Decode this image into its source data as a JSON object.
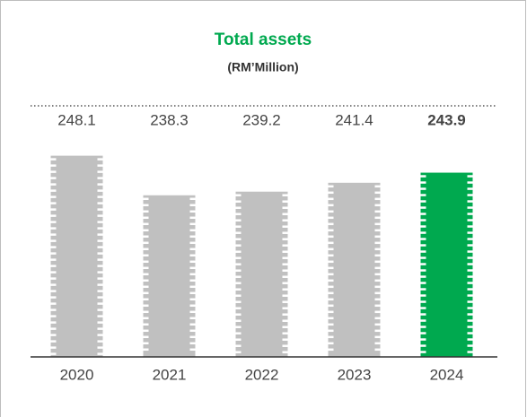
{
  "chart_data": {
    "type": "bar",
    "title": "Total assets",
    "subtitle": "(RM’Million)",
    "categories": [
      "2020",
      "2021",
      "2022",
      "2023",
      "2024"
    ],
    "values": [
      248.1,
      238.3,
      239.2,
      241.4,
      243.9
    ],
    "color": "#c0c0c0",
    "highlight_color": "#00a94f",
    "highlight": [
      false,
      false,
      false,
      false,
      true
    ],
    "ylim": [
      198.3,
      260
    ]
  }
}
